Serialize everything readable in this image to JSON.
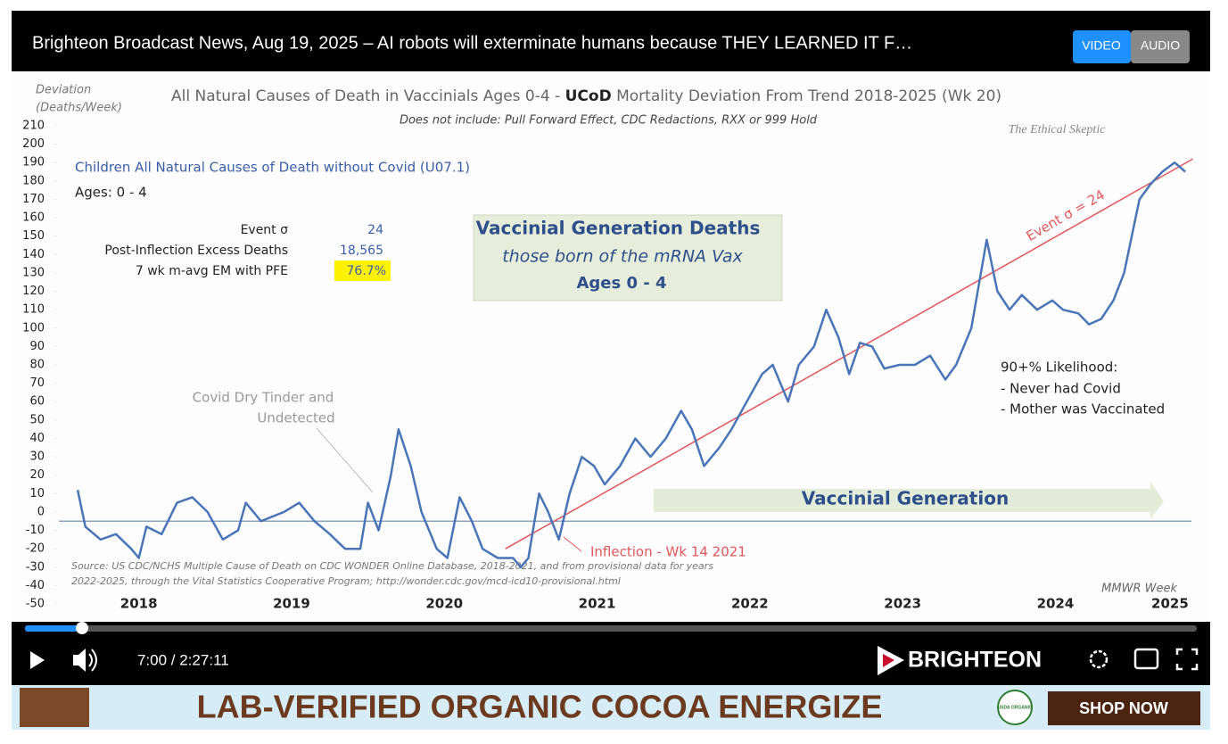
{
  "player": {
    "title": "Brighteon Broadcast News, Aug 19, 2025 – AI robots will exterminate humans because THEY LEARNED IT F…",
    "tabs": [
      "VIDEO",
      "AUDIO"
    ],
    "time": "7:00 / 2:27:11",
    "brand": "BRIGHTEON"
  },
  "ad": {
    "headline": "LAB-VERIFIED ORGANIC COCOA ENERGIZE",
    "badge": "USDA ORGANIC",
    "button": "SHOP NOW"
  },
  "video": {
    "chart": {
      "type": "line",
      "title_parts": [
        "All Natural Causes of Death in Vaccinials Ages 0-4 - ",
        "UCoD",
        " Mortality Deviation From Trend  2018-2025 (Wk 20)"
      ],
      "subtitle": "Does not include: Pull Forward Effect,  CDC Redactions, RXX or 999 Hold",
      "y_label": [
        "Deviation",
        "(Deaths/Week)"
      ],
      "watermark": "The Ethical Skeptic",
      "series_label": "Children All Natural Causes of Death without Covid (U07.1)",
      "ages": "Ages: 0 - 4",
      "stats": [
        [
          "Event σ",
          "24"
        ],
        [
          "Post-Inflection Excess Deaths",
          "18,565"
        ],
        [
          "7 wk m-avg EM with PFE",
          "76.7%"
        ]
      ],
      "box": [
        "Vaccinial Generation  Deaths",
        "those born of the mRNA Vax",
        "Ages 0 - 4"
      ],
      "annotation_tinder": [
        "Covid Dry Tinder and",
        "Undetected"
      ],
      "trend_label": "Event σ = 24",
      "inflection_label": "Inflection - Wk 14 2021",
      "likelihood": [
        "90+% Likelihood:",
        "- Never had Covid",
        "- Mother was Vaccinated"
      ],
      "arrow_label": "Vaccinial Generation",
      "source": [
        "Source: US CDC/NCHS Multiple Cause of Death on CDC WONDER Online Database, 2018-2021, and from provisional data for years",
        "2022-2025, through the Vital Statistics Cooperative Program; http://wonder.cdc.gov/mcd-icd10-provisional.html"
      ],
      "x_label": "MMWR Week",
      "xlim": [
        2018,
        2025.5
      ],
      "xticks": [
        {
          "value": 2018.5,
          "label": "2018"
        },
        {
          "value": 2019.5,
          "label": "2019"
        },
        {
          "value": 2020.5,
          "label": "2020"
        },
        {
          "value": 2021.5,
          "label": "2021"
        },
        {
          "value": 2022.5,
          "label": "2022"
        },
        {
          "value": 2023.5,
          "label": "2023"
        },
        {
          "value": 2024.5,
          "label": "2024"
        },
        {
          "value": 2025.25,
          "label": "2025"
        }
      ],
      "ylim": [
        -50,
        210
      ],
      "yticks": [
        -50,
        -40,
        -30,
        -20,
        -10,
        0,
        10,
        20,
        30,
        40,
        50,
        60,
        70,
        80,
        90,
        100,
        110,
        120,
        130,
        140,
        150,
        160,
        170,
        180,
        190,
        200,
        210
      ],
      "baseline": -5,
      "trend": {
        "color": "#e0575b",
        "x": [
          2020.9,
          2025.4
        ],
        "values": [
          -20,
          192
        ]
      },
      "series": {
        "color": "#4a74b8",
        "x": [
          2018.1,
          2018.15,
          2018.25,
          2018.35,
          2018.45,
          2018.5,
          2018.55,
          2018.65,
          2018.75,
          2018.85,
          2018.95,
          2019.05,
          2019.15,
          2019.2,
          2019.3,
          2019.45,
          2019.55,
          2019.65,
          2019.75,
          2019.85,
          2019.95,
          2020.0,
          2020.07,
          2020.15,
          2020.2,
          2020.28,
          2020.35,
          2020.45,
          2020.52,
          2020.6,
          2020.68,
          2020.75,
          2020.85,
          2020.95,
          2021.0,
          2021.05,
          2021.12,
          2021.18,
          2021.25,
          2021.32,
          2021.4,
          2021.48,
          2021.55,
          2021.65,
          2021.75,
          2021.85,
          2021.95,
          2022.05,
          2022.12,
          2022.2,
          2022.3,
          2022.38,
          2022.48,
          2022.58,
          2022.65,
          2022.75,
          2022.82,
          2022.92,
          2023.0,
          2023.08,
          2023.15,
          2023.22,
          2023.3,
          2023.38,
          2023.48,
          2023.58,
          2023.68,
          2023.78,
          2023.85,
          2023.95,
          2024.05,
          2024.12,
          2024.2,
          2024.28,
          2024.38,
          2024.48,
          2024.55,
          2024.65,
          2024.72,
          2024.8,
          2024.88,
          2024.95,
          2025.05,
          2025.12,
          2025.2,
          2025.28,
          2025.35
        ],
        "values": [
          12,
          -8,
          -15,
          -12,
          -20,
          -25,
          -8,
          -12,
          5,
          8,
          0,
          -15,
          -10,
          5,
          -5,
          0,
          5,
          -5,
          -12,
          -20,
          -20,
          5,
          -10,
          20,
          45,
          25,
          0,
          -20,
          -25,
          8,
          -5,
          -20,
          -25,
          -25,
          -30,
          -25,
          10,
          0,
          -15,
          10,
          30,
          25,
          15,
          25,
          40,
          30,
          40,
          55,
          45,
          25,
          35,
          45,
          60,
          75,
          80,
          60,
          80,
          90,
          110,
          95,
          75,
          92,
          90,
          78,
          80,
          80,
          85,
          72,
          80,
          100,
          148,
          120,
          110,
          118,
          110,
          115,
          110,
          108,
          102,
          105,
          115,
          130,
          170,
          178,
          185,
          190,
          185
        ]
      }
    }
  }
}
